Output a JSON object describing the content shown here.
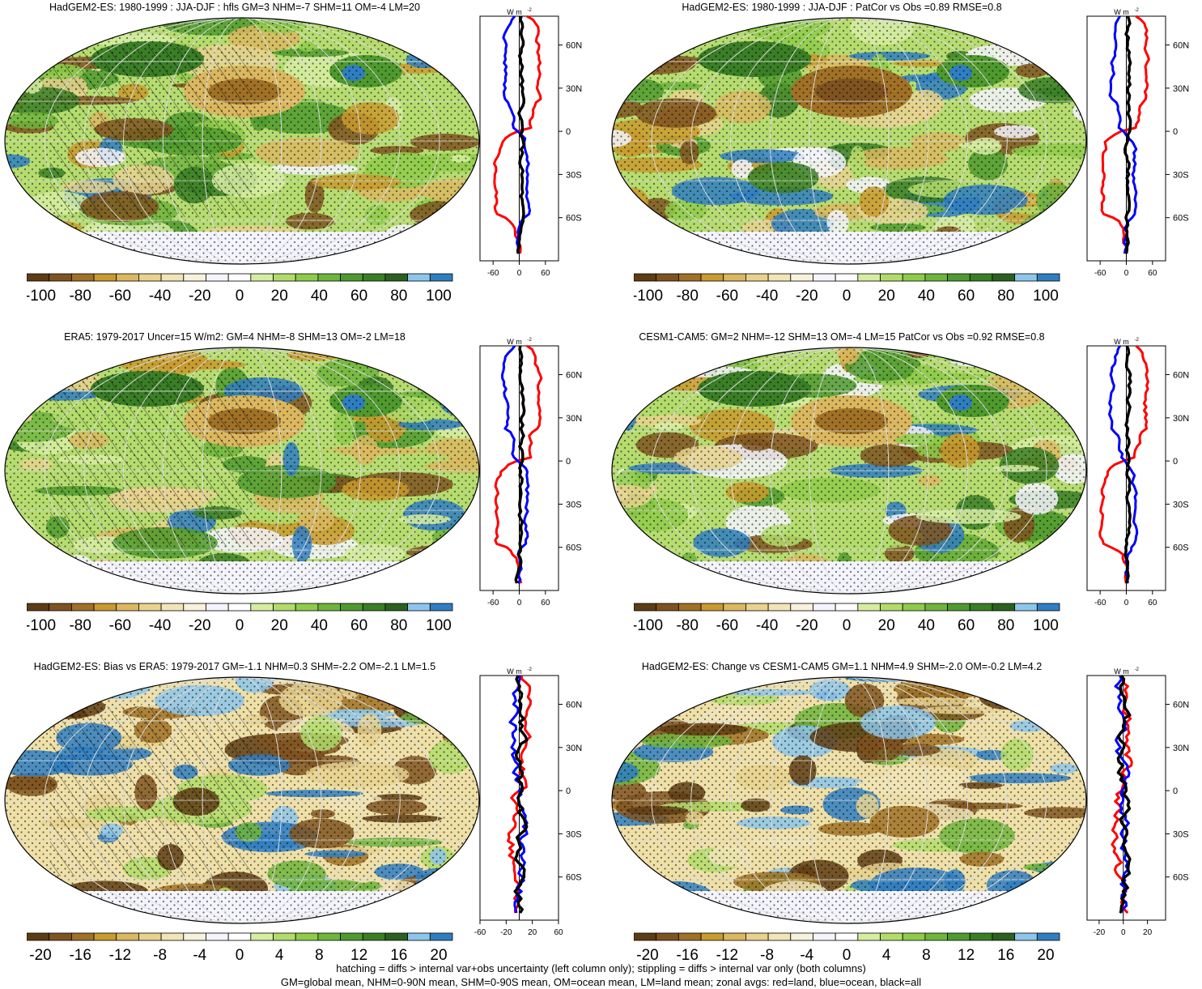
{
  "colorbar_colors": [
    "#5e3c14",
    "#7f5320",
    "#a07126",
    "#c99a2e",
    "#dbb860",
    "#e8d28e",
    "#f1e4b6",
    "#f8f1dc",
    "#f4f4fc",
    "#ffffff",
    "#d6eda0",
    "#b2dc6a",
    "#8fcb4a",
    "#6fb43c",
    "#4f9a2e",
    "#3a7e26",
    "#2b6120",
    "#8dc6ea",
    "#2f7ec2"
  ],
  "panels": [
    {
      "title": "HadGEM2-ES: 1980-1999 : JJA-DJF : hfls GM=3 NHM=-7 SHM=11 OM=-4 LM=20",
      "colorbar_labels": [
        "-100",
        "-80",
        "-60",
        "-40",
        "-20",
        "0",
        "20",
        "40",
        "60",
        "80",
        "100"
      ],
      "zonal": {
        "unit": "W m",
        "unit_sup": "-2",
        "yticks": [
          "60N",
          "30N",
          "0",
          "30S",
          "60S"
        ],
        "xticks": [
          "-60",
          "0",
          "60"
        ],
        "xlim": [
          -90,
          90
        ]
      }
    },
    {
      "title": "HadGEM2-ES: 1980-1999 : JJA-DJF : PatCor vs Obs =0.89 RMSE=0.8",
      "colorbar_labels": [
        "-100",
        "-80",
        "-60",
        "-40",
        "-20",
        "0",
        "20",
        "40",
        "60",
        "80",
        "100"
      ],
      "zonal": {
        "unit": "W m",
        "unit_sup": "-2",
        "yticks": [
          "60N",
          "30N",
          "0",
          "30S",
          "60S"
        ],
        "xticks": [
          "-60",
          "0",
          "60"
        ],
        "xlim": [
          -90,
          90
        ]
      }
    },
    {
      "title": "ERA5: 1979-2017 Uncer=15 W/m2: GM=4 NHM=-8 SHM=13 OM=-2 LM=18",
      "colorbar_labels": [
        "-100",
        "-80",
        "-60",
        "-40",
        "-20",
        "0",
        "20",
        "40",
        "60",
        "80",
        "100"
      ],
      "zonal": {
        "unit": "W m",
        "unit_sup": "-2",
        "yticks": [
          "60N",
          "30N",
          "0",
          "30S",
          "60S"
        ],
        "xticks": [
          "-60",
          "0",
          "60"
        ],
        "xlim": [
          -90,
          90
        ]
      }
    },
    {
      "title": "CESM1-CAM5: GM=2 NHM=-12 SHM=13 OM=-4 LM=15 PatCor vs Obs =0.92 RMSE=0.8",
      "colorbar_labels": [
        "-100",
        "-80",
        "-60",
        "-40",
        "-20",
        "0",
        "20",
        "40",
        "60",
        "80",
        "100"
      ],
      "zonal": {
        "unit": "W m",
        "unit_sup": "-2",
        "yticks": [
          "60N",
          "30N",
          "0",
          "30S",
          "60S"
        ],
        "xticks": [
          "-60",
          "0",
          "60"
        ],
        "xlim": [
          -90,
          90
        ]
      }
    },
    {
      "title": "HadGEM2-ES: Bias vs ERA5: 1979-2017 GM=-1.1 NHM=0.3 SHM=-2.2 OM=-2.1 LM=1.5",
      "colorbar_labels": [
        "-20",
        "-16",
        "-12",
        "-8",
        "-4",
        "0",
        "4",
        "8",
        "12",
        "16",
        "20"
      ],
      "zonal": {
        "unit": "W m",
        "unit_sup": "-2",
        "yticks": [
          "60N",
          "30N",
          "0",
          "30S",
          "60S"
        ],
        "xticks": [
          "-60",
          "-20",
          "20",
          "60"
        ],
        "xlim": [
          -60,
          60
        ]
      }
    },
    {
      "title": "HadGEM2-ES: Change vs CESM1-CAM5 GM=1.1 NHM=4.9 SHM=-2.0 OM=-0.2 LM=4.2",
      "colorbar_labels": [
        "-20",
        "-16",
        "-12",
        "-8",
        "-4",
        "0",
        "4",
        "8",
        "12",
        "16",
        "20"
      ],
      "zonal": {
        "unit": "W m",
        "unit_sup": "-2",
        "yticks": [
          "60N",
          "30N",
          "0",
          "30S",
          "60S"
        ],
        "xticks": [
          "-20",
          "0",
          "20"
        ],
        "xlim": [
          -30,
          35
        ]
      }
    }
  ],
  "footer": {
    "line1": "hatching = diffs > internal var+obs uncertainty (left column only); stippling = diffs > internal var only (both columns)",
    "line2": "GM=global mean, NHM=0-90N mean, SHM=0-90S mean, OM=ocean mean, LM=land mean; zonal avgs: red=land, blue=ocean, black=all"
  }
}
